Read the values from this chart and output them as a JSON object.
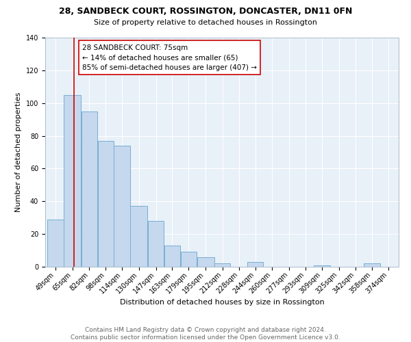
{
  "title": "28, SANDBECK COURT, ROSSINGTON, DONCASTER, DN11 0FN",
  "subtitle": "Size of property relative to detached houses in Rossington",
  "xlabel": "Distribution of detached houses by size in Rossington",
  "ylabel": "Number of detached properties",
  "bar_labels": [
    "49sqm",
    "65sqm",
    "82sqm",
    "98sqm",
    "114sqm",
    "130sqm",
    "147sqm",
    "163sqm",
    "179sqm",
    "195sqm",
    "212sqm",
    "228sqm",
    "244sqm",
    "260sqm",
    "277sqm",
    "293sqm",
    "309sqm",
    "325sqm",
    "342sqm",
    "358sqm",
    "374sqm"
  ],
  "bar_values": [
    29,
    105,
    95,
    77,
    74,
    37,
    28,
    13,
    9,
    6,
    2,
    0,
    3,
    0,
    0,
    0,
    1,
    0,
    0,
    2,
    0
  ],
  "bar_color": "#c5d8ed",
  "bar_edge_color": "#7aaed4",
  "bar_left_edges": [
    49,
    65,
    82,
    98,
    114,
    130,
    147,
    163,
    179,
    195,
    212,
    228,
    244,
    260,
    277,
    293,
    309,
    325,
    342,
    358,
    374
  ],
  "bar_widths": [
    16,
    17,
    16,
    16,
    16,
    17,
    16,
    16,
    16,
    17,
    16,
    16,
    16,
    17,
    16,
    16,
    16,
    17,
    16,
    16,
    16
  ],
  "property_line_x": 75,
  "property_line_color": "#cc0000",
  "annotation_text": "28 SANDBECK COURT: 75sqm\n← 14% of detached houses are smaller (65)\n85% of semi-detached houses are larger (407) →",
  "annotation_box_color": "#ffffff",
  "annotation_box_edge_color": "#cc0000",
  "ylim": [
    0,
    140
  ],
  "yticks": [
    0,
    20,
    40,
    60,
    80,
    100,
    120,
    140
  ],
  "footer_line1": "Contains HM Land Registry data © Crown copyright and database right 2024.",
  "footer_line2": "Contains public sector information licensed under the Open Government Licence v3.0.",
  "background_color": "#ffffff",
  "plot_background_color": "#e8f0f8",
  "title_fontsize": 9,
  "subtitle_fontsize": 8,
  "axis_label_fontsize": 8,
  "tick_fontsize": 7,
  "annotation_fontsize": 7.5,
  "footer_fontsize": 6.5
}
